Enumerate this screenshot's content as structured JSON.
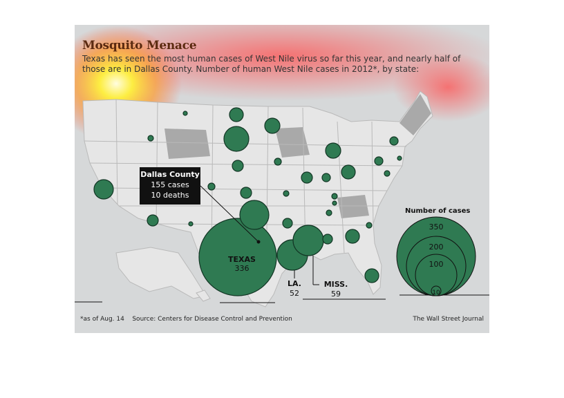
{
  "header": {
    "title": "Mosquito Menace",
    "subtitle": "Texas has seen the most human cases of West Nile virus so far this year, and nearly half of those are in Dallas County. Number of human West Nile cases in 2012*, by state:"
  },
  "callout": {
    "title": "Dallas County",
    "cases": "155 cases",
    "deaths": "10 deaths"
  },
  "labels": {
    "texas_name": "TEXAS",
    "texas_value": "336",
    "la_name": "LA.",
    "la_value": "52",
    "miss_name": "MISS.",
    "miss_value": "59"
  },
  "legend": {
    "title": "Number of cases",
    "values": [
      "350",
      "200",
      "100",
      "10"
    ]
  },
  "footer": {
    "note": "*as of Aug. 14",
    "source": "Source: Centers for Disease Control and Prevention",
    "credit": "The Wall Street Journal"
  },
  "colors": {
    "bubble_fill": "#2f7a52",
    "bubble_stroke": "#123524",
    "state_fill": "#e6e6e6",
    "state_shaded": "#a9a9a9",
    "title_color": "#5b2a10"
  }
}
